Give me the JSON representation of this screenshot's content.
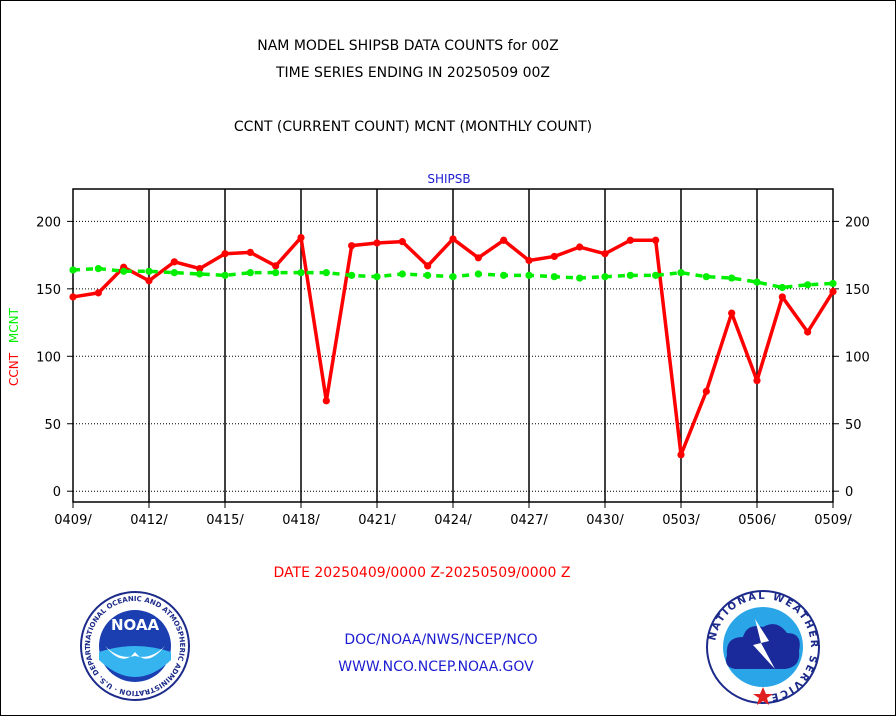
{
  "header": {
    "line1": "NAM MODEL SHIPSB DATA COUNTS for 00Z",
    "line2": "TIME SERIES ENDING IN 20250509 00Z",
    "line3": "CCNT (CURRENT COUNT) MCNT (MONTHLY COUNT)"
  },
  "footer": {
    "date_range": "DATE 20250409/0000 Z-20250509/0000 Z",
    "org_line": "DOC/NOAA/NWS/NCEP/NCO",
    "web_line": "WWW.NCO.NCEP.NOAA.GOV"
  },
  "logos": {
    "noaa_text": "NOAA",
    "noaa_ring": "NATIONAL OCEANIC AND ATMOSPHERIC ADMINISTRATION · U.S. DEPARTMENT OF COMMERCE",
    "nws_ring": "NATIONAL WEATHER SERVICE"
  },
  "chart_data": {
    "type": "line",
    "title": "SHIPSB",
    "ylabel_left": "CCNT",
    "ylabel_right": "MCNT",
    "ylim": [
      -8,
      224
    ],
    "yticks": [
      0,
      50,
      100,
      150,
      200
    ],
    "x_tick_labels": [
      "0409/",
      "0412/",
      "0415/",
      "0418/",
      "0421/",
      "0424/",
      "0427/",
      "0430/",
      "0503/",
      "0506/",
      "0509/"
    ],
    "x": [
      "0409",
      "0410",
      "0411",
      "0412",
      "0413",
      "0414",
      "0415",
      "0416",
      "0417",
      "0418",
      "0419",
      "0420",
      "0421",
      "0422",
      "0423",
      "0424",
      "0425",
      "0426",
      "0427",
      "0428",
      "0429",
      "0430",
      "0501",
      "0502",
      "0503",
      "0504",
      "0505",
      "0506",
      "0507",
      "0508",
      "0509"
    ],
    "grid": true,
    "series": [
      {
        "name": "CCNT",
        "color": "#ff0000",
        "style": "solid-markers",
        "values": [
          144,
          147,
          166,
          156,
          170,
          165,
          176,
          177,
          167,
          188,
          67,
          182,
          184,
          185,
          167,
          187,
          173,
          186,
          171,
          174,
          181,
          176,
          186,
          186,
          27,
          74,
          132,
          82,
          144,
          118,
          148
        ]
      },
      {
        "name": "MCNT",
        "color": "#00ee00",
        "style": "dashed-markers",
        "values": [
          164,
          165,
          163,
          163,
          162,
          161,
          160,
          162,
          162,
          162,
          162,
          160,
          159,
          161,
          160,
          159,
          161,
          160,
          160,
          159,
          158,
          159,
          160,
          160,
          162,
          159,
          158,
          155,
          151,
          153,
          154
        ]
      }
    ]
  }
}
